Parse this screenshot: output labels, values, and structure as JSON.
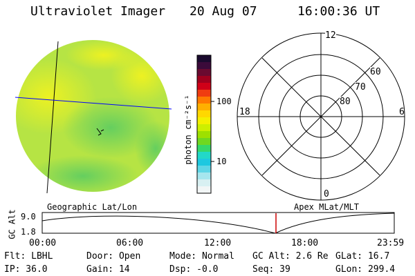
{
  "header": {
    "instrument": "Ultraviolet Imager",
    "date": "20 Aug 07",
    "time": "16:00:36 UT"
  },
  "colorbar": {
    "unit_label": "photon cm⁻²s⁻¹",
    "tick_100": "100",
    "tick_10": "10",
    "colors": [
      "#1a0a2e",
      "#3b0a3a",
      "#6a0a30",
      "#a0001e",
      "#d00018",
      "#f03c10",
      "#ff7a00",
      "#ffb000",
      "#ffd800",
      "#f4f000",
      "#cdef00",
      "#9ee000",
      "#6fd820",
      "#35d86a",
      "#22d8c8",
      "#1ec8e0",
      "#5fd6e6",
      "#a6e6ee",
      "#d8f0f2",
      "#f2f6f6"
    ]
  },
  "polar": {
    "mlt_labels": {
      "top": "12",
      "left": "18",
      "right": "6",
      "bottom": "0"
    },
    "lat_labels": [
      "60",
      "70",
      "80"
    ]
  },
  "timeline": {
    "left_title": "Geographic Lat/Lon",
    "right_title": "Apex MLat/MLT",
    "y_axis_label": "GC Alt",
    "y_top": "9.0",
    "y_bottom": "1.8",
    "x_ticks": [
      "00:00",
      "06:00",
      "12:00",
      "18:00",
      "23:59"
    ],
    "marker_time": "16:00",
    "marker_color": "#cc0000"
  },
  "status": {
    "flt": "Flt: LBHL",
    "ip": "IP: 36.0",
    "door": "Door: Open",
    "gain": "Gain: 14",
    "mode": "Mode: Normal",
    "dsp": "Dsp:   -0.0",
    "gc_alt": "GC Alt: 2.6 Re",
    "seq": "Seq: 39",
    "glat": "GLat:  16.7",
    "glon": "GLon: 299.4"
  },
  "colors": {
    "grid_line": "#0000ff",
    "disk_base": "#b0e440",
    "disk_bright": "#eaf22a",
    "disk_dim": "#6ed058"
  }
}
